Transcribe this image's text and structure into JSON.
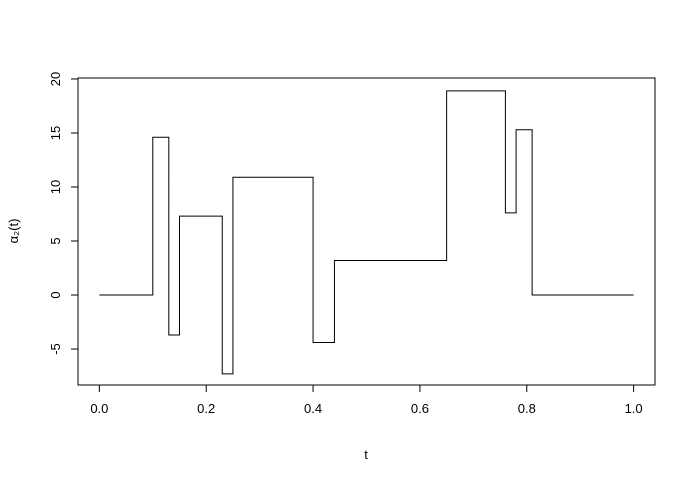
{
  "chart_data": {
    "type": "line",
    "xlabel": "t",
    "ylabel": "α₂(t)",
    "x": [
      0,
      0.1,
      0.1,
      0.13,
      0.13,
      0.15,
      0.15,
      0.23,
      0.23,
      0.25,
      0.25,
      0.4,
      0.4,
      0.44,
      0.44,
      0.65,
      0.65,
      0.76,
      0.76,
      0.78,
      0.78,
      0.81,
      0.81,
      1.0
    ],
    "series": [
      {
        "color": "#000000",
        "values": [
          0,
          0,
          14.6,
          14.6,
          -3.7,
          -3.7,
          7.3,
          7.3,
          -7.3,
          -7.3,
          10.9,
          10.9,
          -4.4,
          -4.4,
          3.2,
          3.2,
          18.9,
          18.9,
          7.6,
          7.6,
          15.3,
          15.3,
          0,
          0
        ]
      }
    ],
    "xlim": [
      -0.04,
      1.04
    ],
    "ylim": [
      -8.33,
      20.09
    ],
    "xticks": [
      {
        "value": 0,
        "label": "0.0"
      },
      0.2,
      0.4,
      0.6,
      0.8,
      {
        "value": 1,
        "label": "1.0"
      }
    ],
    "yticks": [
      -5,
      0,
      5,
      10,
      15,
      20
    ]
  }
}
